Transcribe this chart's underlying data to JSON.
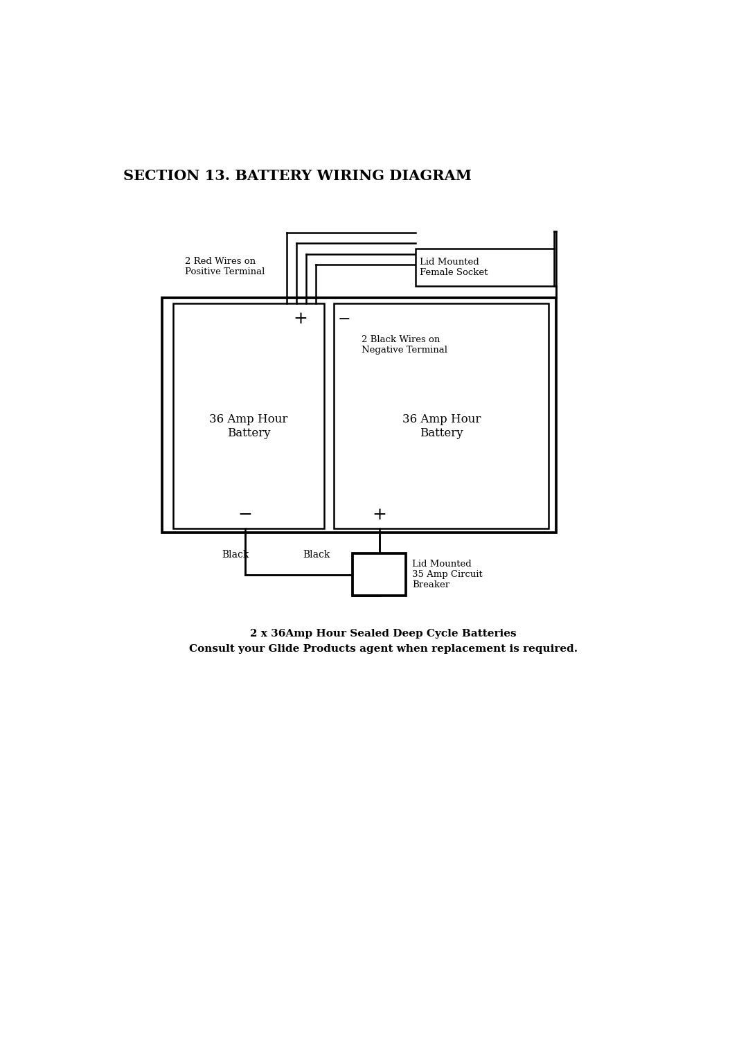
{
  "title": "SECTION 13. BATTERY WIRING DIAGRAM",
  "title_fontsize": 15,
  "title_fontweight": "bold",
  "caption_line1": "2 x 36Amp Hour Sealed Deep Cycle Batteries",
  "caption_line2": "Consult your Glide Products agent when replacement is required.",
  "caption_fontsize": 11,
  "caption_fontweight": "bold",
  "background_color": "#ffffff",
  "line_color": "#000000",
  "lw": 1.8,
  "battery1_label": "36 Amp Hour\nBattery",
  "battery2_label": "36 Amp Hour\nBattery",
  "label_red_wires": "2 Red Wires on\nPositive Terminal",
  "label_black_wires": "2 Black Wires on\nNegative Terminal",
  "label_lid_socket": "Lid Mounted\nFemale Socket",
  "label_circuit_breaker": "Lid Mounted\n35 Amp Circuit\nBreaker",
  "label_black1": "Black",
  "label_black2": "Black"
}
